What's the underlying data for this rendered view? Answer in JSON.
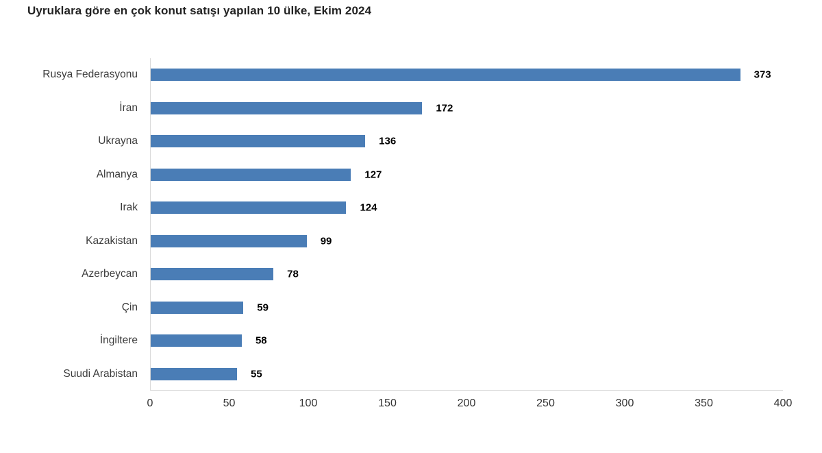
{
  "title": "Uyruklara göre en çok konut satışı yapılan 10 ülke, Ekim 2024",
  "chart_data": {
    "type": "bar",
    "orientation": "horizontal",
    "title": "Uyruklara göre en çok konut satışı yapılan 10 ülke, Ekim 2024",
    "categories": [
      "Rusya Federasyonu",
      "İran",
      "Ukrayna",
      "Almanya",
      "Irak",
      "Kazakistan",
      "Azerbeycan",
      "Çin",
      "İngiltere",
      "Suudi Arabistan"
    ],
    "values": [
      373,
      172,
      136,
      127,
      124,
      99,
      78,
      59,
      58,
      55
    ],
    "value_labels": [
      "373",
      "172",
      "136",
      "127",
      "124",
      "99",
      "78",
      "59",
      "58",
      "55"
    ],
    "xlabel": "",
    "ylabel": "",
    "xlim": [
      0,
      400
    ],
    "x_ticks": [
      "0",
      "50",
      "100",
      "150",
      "200",
      "250",
      "300",
      "350",
      "400"
    ],
    "grid": false,
    "legend": "none",
    "bar_color": "#4a7db6",
    "value_label_color": "#000000",
    "category_label_color": "#3c3c3c",
    "axis_line_color": "#d9d9d9",
    "tick_label_color": "#333333",
    "background_color": "#ffffff"
  }
}
